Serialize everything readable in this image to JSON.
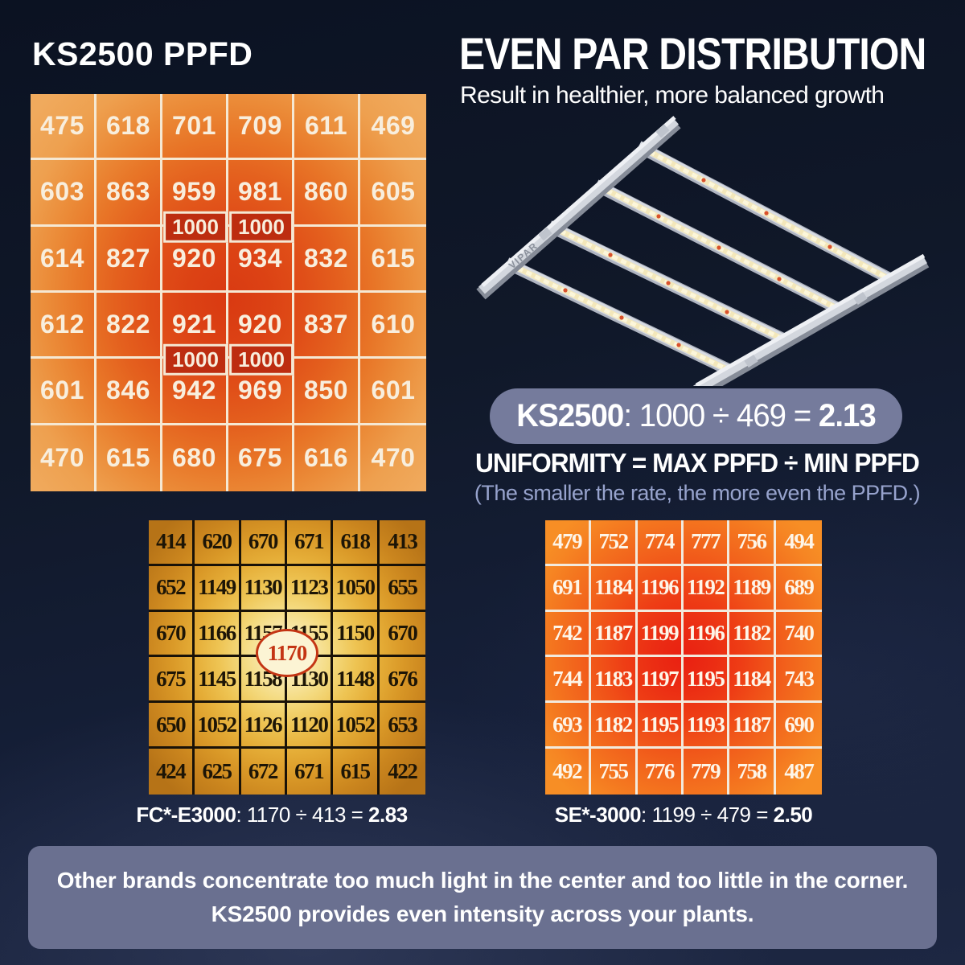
{
  "left_panel": {
    "title": "KS2500 PPFD"
  },
  "header": {
    "heading": "EVEN PAR DISTRIBUTION",
    "subheading": "Result in healthier, more balanced growth"
  },
  "formula_badge": {
    "product": "KS2500",
    "expression": ": 1000 ÷ 469 = ",
    "result": "2.13"
  },
  "uniformity": {
    "formula": "UNIFORMITY = MAX PPFD ÷ MIN PPFD",
    "note": "(The smaller the rate, the more even the PPFD.)"
  },
  "grid1_badges": [
    "1000",
    "1000",
    "1000",
    "1000"
  ],
  "comparisons": {
    "fc": {
      "label": "FC*-E3000",
      "expression": ": 1170 ÷ 413 = ",
      "result": "2.83",
      "peak_label": "1170"
    },
    "se": {
      "label": "SE*-3000",
      "expression": ": 1199 ÷ 479 = ",
      "result": "2.50"
    }
  },
  "footer": {
    "line1": "Other brands concentrate too much light in the center and too little in the corner.",
    "line2": "KS2500 provides even intensity across your plants."
  },
  "colors": {
    "background_navy": "#101829",
    "heat_center_red": "#dd3a14",
    "heat_edge_orange": "#f0aa5d",
    "gold_center": "#fdf6da",
    "gold_edge": "#b67317",
    "se_center_red": "#e92012",
    "se_edge_orange": "#f78e25",
    "badge_red": "#bd2d10",
    "pill_slate": "#757b9c",
    "note_periwinkle": "#97a3cd",
    "banner_slate": "#6a7090"
  },
  "chart_data": [
    {
      "type": "heatmap",
      "title": "KS2500 PPFD",
      "rows": 6,
      "cols": 6,
      "values": [
        [
          475,
          618,
          701,
          709,
          611,
          469
        ],
        [
          603,
          863,
          959,
          981,
          860,
          605
        ],
        [
          614,
          827,
          920,
          934,
          832,
          615
        ],
        [
          612,
          822,
          921,
          920,
          837,
          610
        ],
        [
          601,
          846,
          942,
          969,
          850,
          601
        ],
        [
          470,
          615,
          680,
          675,
          616,
          470
        ]
      ],
      "peak_annotations": [
        {
          "label": "1000",
          "between_rows": [
            2,
            3
          ],
          "column": 3
        },
        {
          "label": "1000",
          "between_rows": [
            2,
            3
          ],
          "column": 4
        },
        {
          "label": "1000",
          "between_rows": [
            4,
            5
          ],
          "column": 3
        },
        {
          "label": "1000",
          "between_rows": [
            4,
            5
          ],
          "column": 4
        }
      ],
      "max_ppfd": 1000,
      "min_ppfd": 469,
      "uniformity": 2.13
    },
    {
      "type": "heatmap",
      "title": "FC*-E3000",
      "rows": 6,
      "cols": 6,
      "values": [
        [
          414,
          620,
          670,
          671,
          618,
          413
        ],
        [
          652,
          1149,
          1130,
          1123,
          1050,
          655
        ],
        [
          670,
          1166,
          1157,
          1155,
          1150,
          670
        ],
        [
          675,
          1145,
          1158,
          1130,
          1148,
          676
        ],
        [
          650,
          1052,
          1126,
          1120,
          1052,
          653
        ],
        [
          424,
          625,
          672,
          671,
          615,
          422
        ]
      ],
      "peak_annotations": [
        {
          "label": "1170",
          "position": "center"
        }
      ],
      "max_ppfd": 1170,
      "min_ppfd": 413,
      "uniformity": 2.83
    },
    {
      "type": "heatmap",
      "title": "SE*-3000",
      "rows": 6,
      "cols": 6,
      "values": [
        [
          479,
          752,
          774,
          777,
          756,
          494
        ],
        [
          691,
          1184,
          1196,
          1192,
          1189,
          689
        ],
        [
          742,
          1187,
          1199,
          1196,
          1182,
          740
        ],
        [
          744,
          1183,
          1197,
          1195,
          1184,
          743
        ],
        [
          693,
          1182,
          1195,
          1193,
          1187,
          690
        ],
        [
          492,
          755,
          776,
          779,
          758,
          487
        ]
      ],
      "max_ppfd": 1199,
      "min_ppfd": 479,
      "uniformity": 2.5
    }
  ]
}
